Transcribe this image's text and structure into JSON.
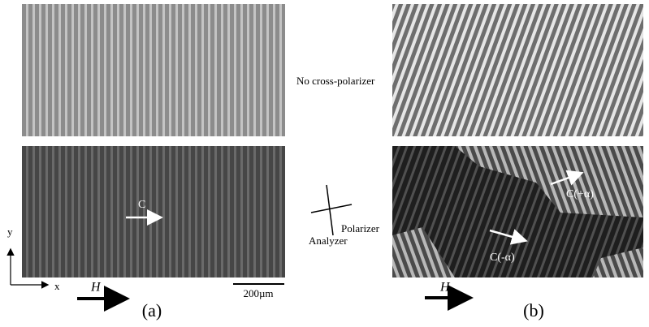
{
  "panel_a": {
    "label": "(a)",
    "note": "No cross-polarizer",
    "director": "C",
    "field": "H",
    "scale_bar": "200µm",
    "axis_y": "y",
    "axis_x": "x"
  },
  "panel_b": {
    "label": "(b)",
    "field": "H",
    "director_plus": "C(+α)",
    "director_minus": "C(-α)"
  },
  "polarizers": {
    "polarizer": "Polarizer",
    "analyzer": "Analyzer"
  }
}
